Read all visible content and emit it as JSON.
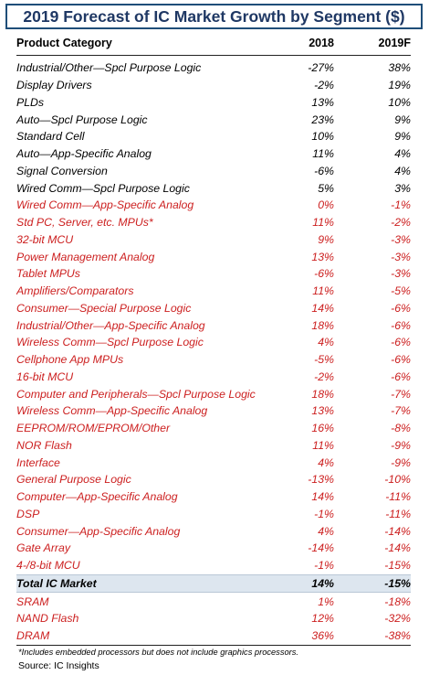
{
  "title": "2019 Forecast of IC Market Growth by Segment ($)",
  "columns": [
    "Product Category",
    "2018",
    "2019F"
  ],
  "colors": {
    "red_text": "#cc1f1f",
    "total_band": "#dde6ef",
    "title_border": "#1f4e79"
  },
  "rows": [
    {
      "category": "Industrial/Other—Spcl Purpose Logic",
      "y2018": "-27%",
      "y2019": "38%",
      "style": "black"
    },
    {
      "category": "Display Drivers",
      "y2018": "-2%",
      "y2019": "19%",
      "style": "black"
    },
    {
      "category": "PLDs",
      "y2018": "13%",
      "y2019": "10%",
      "style": "black"
    },
    {
      "category": "Auto—Spcl Purpose Logic",
      "y2018": "23%",
      "y2019": "9%",
      "style": "black"
    },
    {
      "category": "Standard Cell",
      "y2018": "10%",
      "y2019": "9%",
      "style": "black"
    },
    {
      "category": "Auto—App-Specific Analog",
      "y2018": "11%",
      "y2019": "4%",
      "style": "black"
    },
    {
      "category": "Signal Conversion",
      "y2018": "-6%",
      "y2019": "4%",
      "style": "black"
    },
    {
      "category": "Wired Comm—Spcl Purpose Logic",
      "y2018": "5%",
      "y2019": "3%",
      "style": "black"
    },
    {
      "category": "Wired Comm—App-Specific Analog",
      "y2018": "0%",
      "y2019": "-1%",
      "style": "red"
    },
    {
      "category": "Std PC, Server, etc. MPUs*",
      "y2018": "11%",
      "y2019": "-2%",
      "style": "red"
    },
    {
      "category": "32-bit MCU",
      "y2018": "9%",
      "y2019": "-3%",
      "style": "red"
    },
    {
      "category": "Power Management Analog",
      "y2018": "13%",
      "y2019": "-3%",
      "style": "red"
    },
    {
      "category": "Tablet MPUs",
      "y2018": "-6%",
      "y2019": "-3%",
      "style": "red"
    },
    {
      "category": "Amplifiers/Comparators",
      "y2018": "11%",
      "y2019": "-5%",
      "style": "red"
    },
    {
      "category": "Consumer—Special Purpose Logic",
      "y2018": "14%",
      "y2019": "-6%",
      "style": "red"
    },
    {
      "category": "Industrial/Other—App-Specific Analog",
      "y2018": "18%",
      "y2019": "-6%",
      "style": "red"
    },
    {
      "category": "Wireless Comm—Spcl Purpose Logic",
      "y2018": "4%",
      "y2019": "-6%",
      "style": "red"
    },
    {
      "category": "Cellphone App MPUs",
      "y2018": "-5%",
      "y2019": "-6%",
      "style": "red"
    },
    {
      "category": "16-bit MCU",
      "y2018": "-2%",
      "y2019": "-6%",
      "style": "red"
    },
    {
      "category": "Computer and Peripherals—Spcl Purpose Logic",
      "y2018": "18%",
      "y2019": "-7%",
      "style": "red"
    },
    {
      "category": "Wireless Comm—App-Specific Analog",
      "y2018": "13%",
      "y2019": "-7%",
      "style": "red"
    },
    {
      "category": "EEPROM/ROM/EPROM/Other",
      "y2018": "16%",
      "y2019": "-8%",
      "style": "red"
    },
    {
      "category": "NOR Flash",
      "y2018": "11%",
      "y2019": "-9%",
      "style": "red"
    },
    {
      "category": "Interface",
      "y2018": "4%",
      "y2019": "-9%",
      "style": "red"
    },
    {
      "category": "General Purpose Logic",
      "y2018": "-13%",
      "y2019": "-10%",
      "style": "red"
    },
    {
      "category": "Computer—App-Specific Analog",
      "y2018": "14%",
      "y2019": "-11%",
      "style": "red"
    },
    {
      "category": "DSP",
      "y2018": "-1%",
      "y2019": "-11%",
      "style": "red"
    },
    {
      "category": "Consumer—App-Specific Analog",
      "y2018": "4%",
      "y2019": "-14%",
      "style": "red"
    },
    {
      "category": "Gate Array",
      "y2018": "-14%",
      "y2019": "-14%",
      "style": "red"
    },
    {
      "category": "4-/8-bit MCU",
      "y2018": "-1%",
      "y2019": "-15%",
      "style": "red"
    },
    {
      "category": "Total IC Market",
      "y2018": "14%",
      "y2019": "-15%",
      "style": "total"
    },
    {
      "category": "SRAM",
      "y2018": "1%",
      "y2019": "-18%",
      "style": "red"
    },
    {
      "category": "NAND Flash",
      "y2018": "12%",
      "y2019": "-32%",
      "style": "red"
    },
    {
      "category": "DRAM",
      "y2018": "36%",
      "y2019": "-38%",
      "style": "red"
    }
  ],
  "footnote": "*Includes embedded processors but does not include graphics processors.",
  "source": "Source:  IC Insights"
}
